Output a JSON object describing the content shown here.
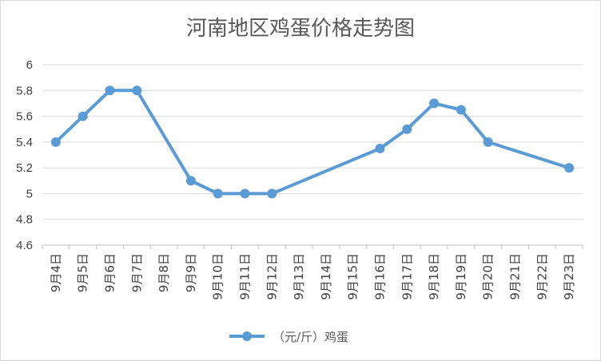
{
  "chart_data": {
    "type": "line",
    "title": "河南地区鸡蛋价格走势图",
    "xlabel": "",
    "ylabel": "",
    "categories": [
      "9月4日",
      "9月5日",
      "9月6日",
      "9月7日",
      "9月8日",
      "9月9日",
      "9月10日",
      "9月11日",
      "9月12日",
      "9月13日",
      "9月14日",
      "9月15日",
      "9月16日",
      "9月17日",
      "9月18日",
      "9月19日",
      "9月20日",
      "9月21日",
      "9月22日",
      "9月23日"
    ],
    "series": [
      {
        "name": "（元/斤）鸡蛋",
        "color": "#5b9bd5",
        "points": [
          {
            "x": "9月4日",
            "y": 5.4
          },
          {
            "x": "9月5日",
            "y": 5.6
          },
          {
            "x": "9月6日",
            "y": 5.8
          },
          {
            "x": "9月7日",
            "y": 5.8
          },
          {
            "x": "9月9日",
            "y": 5.1
          },
          {
            "x": "9月10日",
            "y": 5.0
          },
          {
            "x": "9月11日",
            "y": 5.0
          },
          {
            "x": "9月12日",
            "y": 5.0
          },
          {
            "x": "9月16日",
            "y": 5.35
          },
          {
            "x": "9月17日",
            "y": 5.5
          },
          {
            "x": "9月18日",
            "y": 5.7
          },
          {
            "x": "9月19日",
            "y": 5.65
          },
          {
            "x": "9月20日",
            "y": 5.4
          },
          {
            "x": "9月23日",
            "y": 5.2
          }
        ]
      }
    ],
    "ylim": [
      4.6,
      6
    ],
    "yticks": [
      "4.6",
      "4.8",
      "5",
      "5.2",
      "5.4",
      "5.6",
      "5.8",
      "6"
    ],
    "grid": true,
    "legend_position": "bottom"
  }
}
